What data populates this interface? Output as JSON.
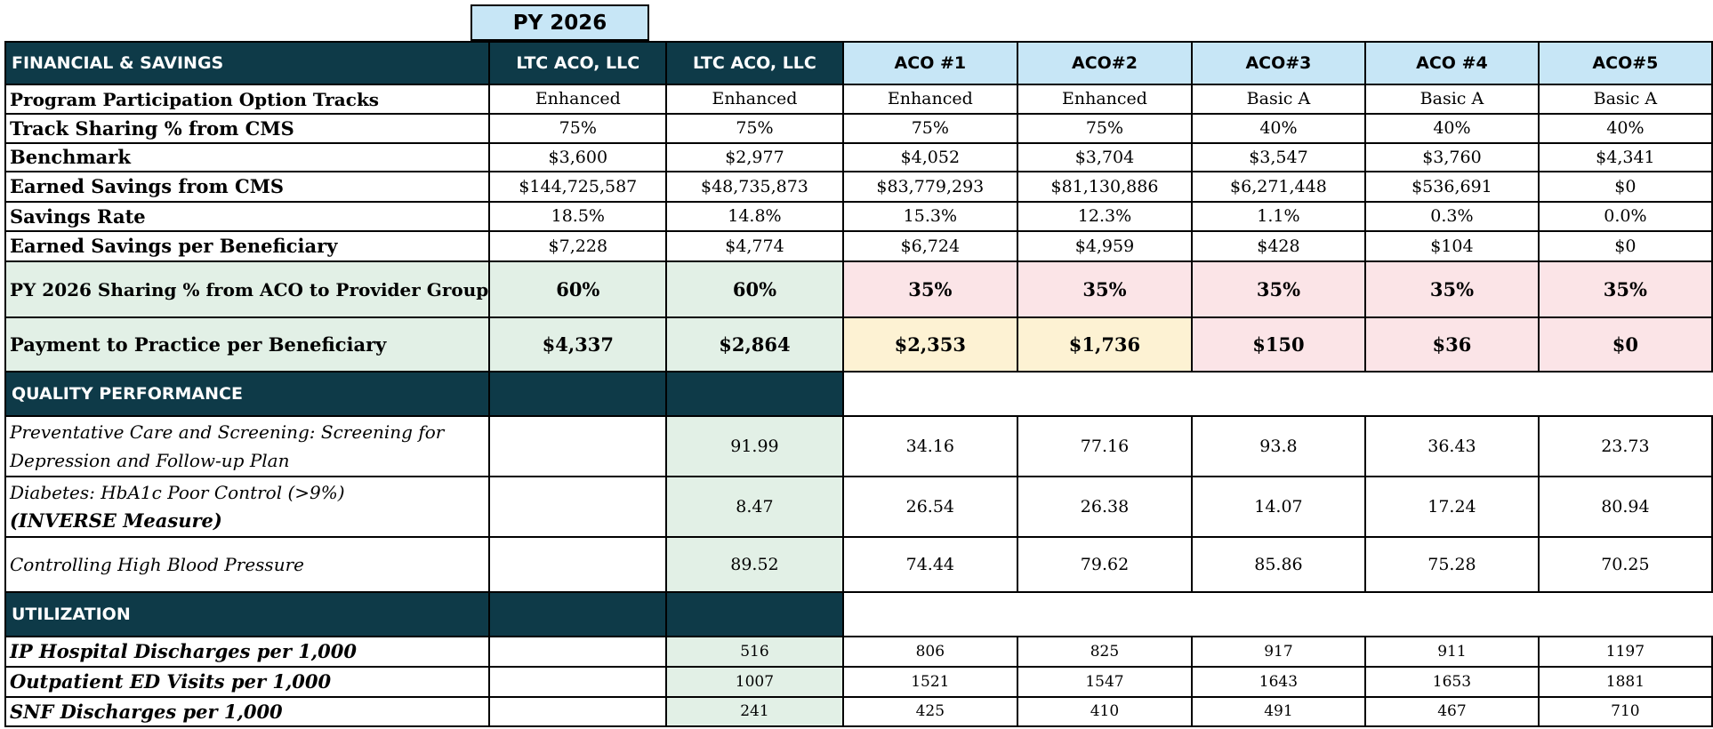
{
  "py_label": "PY 2026",
  "columns": [
    "LTC ACO, LLC",
    "LTC ACO, LLC",
    "ACO #1",
    "ACO#2",
    "ACO#3",
    "ACO #4",
    "ACO#5"
  ],
  "sections": {
    "financial": "FINANCIAL & SAVINGS",
    "quality": "QUALITY PERFORMANCE",
    "utilization": "UTILIZATION"
  },
  "financial_rows": [
    {
      "label": "Program Participation Option Tracks",
      "values": [
        "Enhanced",
        "Enhanced",
        "Enhanced",
        "Enhanced",
        "Basic A",
        "Basic A",
        "Basic A"
      ]
    },
    {
      "label": "Track Sharing % from CMS",
      "values": [
        "75%",
        "75%",
        "75%",
        "75%",
        "40%",
        "40%",
        "40%"
      ]
    },
    {
      "label": "Benchmark",
      "values": [
        "$3,600",
        "$2,977",
        "$4,052",
        "$3,704",
        "$3,547",
        "$3,760",
        "$4,341"
      ]
    },
    {
      "label": "Earned Savings from CMS",
      "values": [
        "$144,725,587",
        "$48,735,873",
        "$83,779,293",
        "$81,130,886",
        "$6,271,448",
        "$536,691",
        "$0"
      ]
    },
    {
      "label": "Savings Rate",
      "values": [
        "18.5%",
        "14.8%",
        "15.3%",
        "12.3%",
        "1.1%",
        "0.3%",
        "0.0%"
      ]
    },
    {
      "label": "Earned Savings per Beneficiary",
      "values": [
        "$7,228",
        "$4,774",
        "$6,724",
        "$4,959",
        "$428",
        "$104",
        "$0"
      ]
    }
  ],
  "sharing_row": {
    "label": "PY 2026 Sharing % from ACO to Provider Group",
    "values": [
      "60%",
      "60%",
      "35%",
      "35%",
      "35%",
      "35%",
      "35%"
    ]
  },
  "payment_row": {
    "label": "Payment to Practice per Beneficiary",
    "values": [
      "$4,337",
      "$2,864",
      "$2,353",
      "$1,736",
      "$150",
      "$36",
      "$0"
    ]
  },
  "quality_rows": [
    {
      "label": "Preventative Care and Screening: Screening for Depression and Follow-up Plan",
      "label_bold": "",
      "values": [
        "",
        "91.99",
        "34.16",
        "77.16",
        "93.8",
        "36.43",
        "23.73"
      ]
    },
    {
      "label": "Diabetes: HbA1c Poor Control (>9%)",
      "label_bold": "(INVERSE Measure)",
      "values": [
        "",
        "8.47",
        "26.54",
        "26.38",
        "14.07",
        "17.24",
        "80.94"
      ]
    },
    {
      "label": "Controlling High Blood Pressure",
      "label_bold": "",
      "values": [
        "",
        "89.52",
        "74.44",
        "79.62",
        "85.86",
        "75.28",
        "70.25"
      ]
    }
  ],
  "utilization_rows": [
    {
      "label": "IP Hospital Discharges per 1,000",
      "values": [
        "",
        "516",
        "806",
        "825",
        "917",
        "911",
        "1197"
      ]
    },
    {
      "label": "Outpatient ED Visits per 1,000",
      "values": [
        "",
        "1007",
        "1521",
        "1547",
        "1643",
        "1653",
        "1881"
      ]
    },
    {
      "label": "SNF Discharges per 1,000",
      "values": [
        "",
        "241",
        "425",
        "410",
        "491",
        "467",
        "710"
      ]
    }
  ],
  "colors": {
    "dark_header": "#0e3a48",
    "light_header": "#c7e6f6",
    "green_fill": "#e2f0e6",
    "pink_fill": "#fbe4e7",
    "yellow_fill": "#fdf2d3"
  }
}
